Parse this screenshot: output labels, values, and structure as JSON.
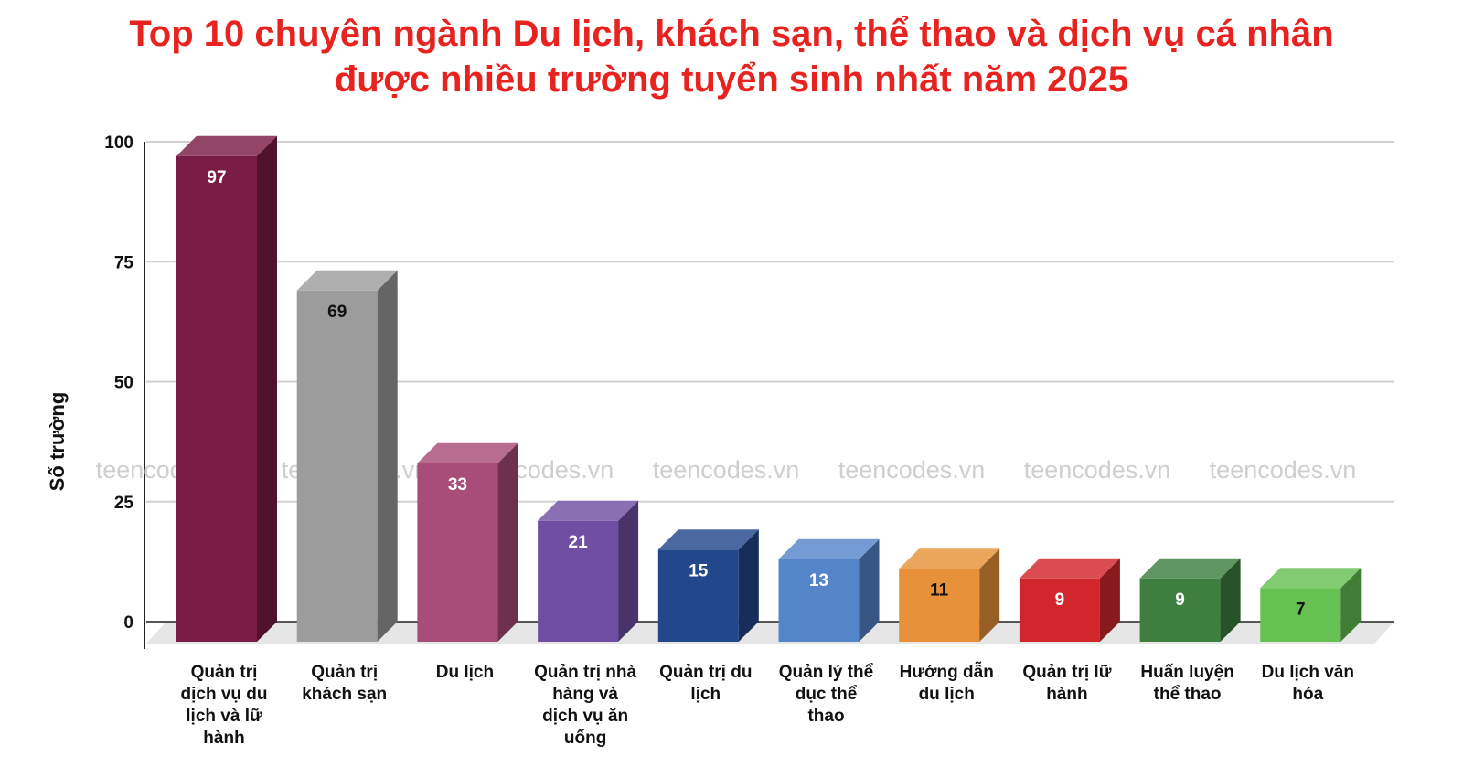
{
  "chart_data": {
    "type": "bar",
    "title_lines": [
      "Top 10 chuyên ngành Du lịch, khách sạn, thể thao và dịch vụ cá nhân",
      "được nhiều trường tuyển sinh nhất năm 2025"
    ],
    "ylabel": "Số trường",
    "ylim": [
      0,
      100
    ],
    "yticks": [
      0,
      25,
      50,
      75,
      100
    ],
    "grid": true,
    "categories": [
      "Quản trị dịch vụ du lịch và lữ hành",
      "Quản trị khách sạn",
      "Du lịch",
      "Quản trị nhà hàng và dịch vụ ăn uống",
      "Quản trị du lịch",
      "Quản lý thể dục thể thao",
      "Hướng dẫn du lịch",
      "Quản trị lữ hành",
      "Huấn luyện thể thao",
      "Du lịch văn hóa"
    ],
    "category_label_lines": [
      [
        "Quản trị",
        "dịch vụ du",
        "lịch và lữ",
        "hành"
      ],
      [
        "Quản trị",
        "khách sạn"
      ],
      [
        "Du lịch"
      ],
      [
        "Quản trị nhà",
        "hàng và",
        "dịch vụ ăn",
        "uống"
      ],
      [
        "Quản trị du",
        "lịch"
      ],
      [
        "Quản lý thể",
        "dục thể",
        "thao"
      ],
      [
        "Hướng dẫn",
        "du lịch"
      ],
      [
        "Quản trị lữ",
        "hành"
      ],
      [
        "Huấn luyện",
        "thể thao"
      ],
      [
        "Du lịch văn",
        "hóa"
      ]
    ],
    "values": [
      97,
      69,
      33,
      21,
      15,
      13,
      11,
      9,
      9,
      7
    ],
    "value_labels": [
      "97",
      "69",
      "33",
      "21",
      "15",
      "13",
      "11",
      "9",
      "9",
      "7"
    ],
    "colors": [
      "#7a1c45",
      "#9c9c9c",
      "#a84c78",
      "#6f4fa3",
      "#23478b",
      "#5585c9",
      "#e8913a",
      "#d1262c",
      "#3e7e3e",
      "#65c152"
    ],
    "value_label_colors": [
      "#ffffff",
      "#111111",
      "#ffffff",
      "#ffffff",
      "#ffffff",
      "#ffffff",
      "#111111",
      "#ffffff",
      "#ffffff",
      "#111111"
    ]
  },
  "watermark": {
    "text": "teencodes.vn",
    "repeats": 7
  }
}
